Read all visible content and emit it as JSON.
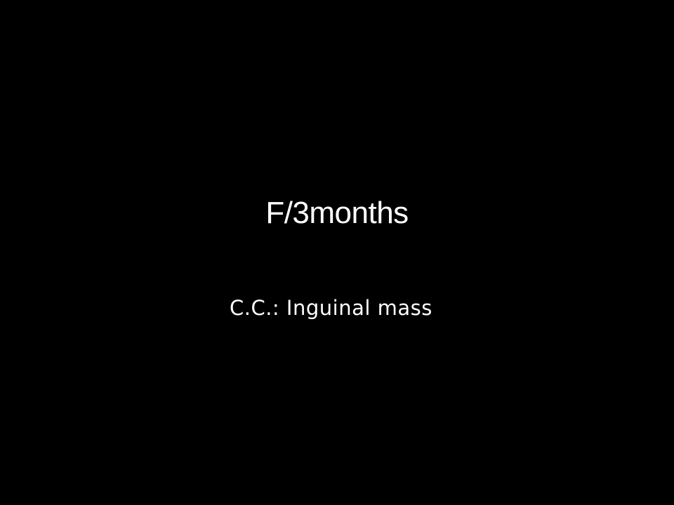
{
  "slide": {
    "title": "F/3months",
    "subtitle": "C.C.: Inguinal mass",
    "background_color": "#000000",
    "text_color": "#ffffff"
  }
}
